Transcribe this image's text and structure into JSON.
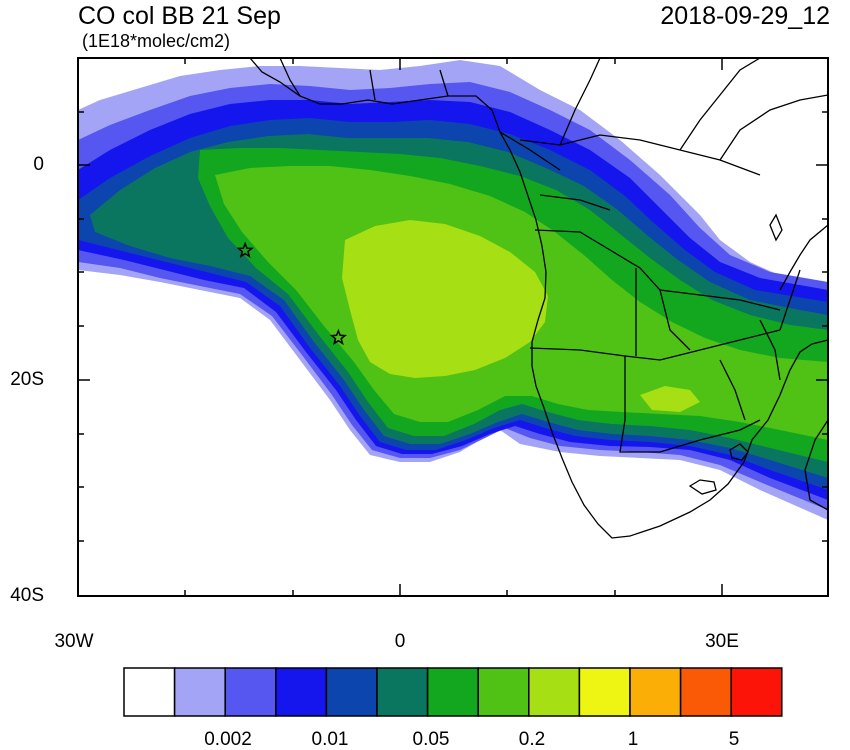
{
  "header": {
    "title": "CO col BB 21 Sep",
    "subtitle": "(1E18*molec/cm2)",
    "timestamp": "2018-09-29_12"
  },
  "map": {
    "lon_range": [
      -30,
      40
    ],
    "lat_range": [
      -40,
      10
    ],
    "y_ticks": [
      "0",
      "20S",
      "40S"
    ],
    "x_ticks": [
      "30W",
      "0",
      "30E"
    ],
    "markers": [
      {
        "type": "star",
        "lon": -14.4,
        "lat": -7.9
      },
      {
        "type": "star",
        "lon": -5.7,
        "lat": -16.0
      }
    ]
  },
  "colorbar": {
    "colors": [
      "#ffffff",
      "#a4a4f6",
      "#5656f0",
      "#1515ee",
      "#0c45ad",
      "#0a7660",
      "#13a720",
      "#4fc215",
      "#a6df13",
      "#eef513",
      "#fbae06",
      "#fa5a06",
      "#fc1408"
    ],
    "labels": [
      "0.002",
      "0.01",
      "0.05",
      "0.2",
      "1",
      "5"
    ]
  }
}
